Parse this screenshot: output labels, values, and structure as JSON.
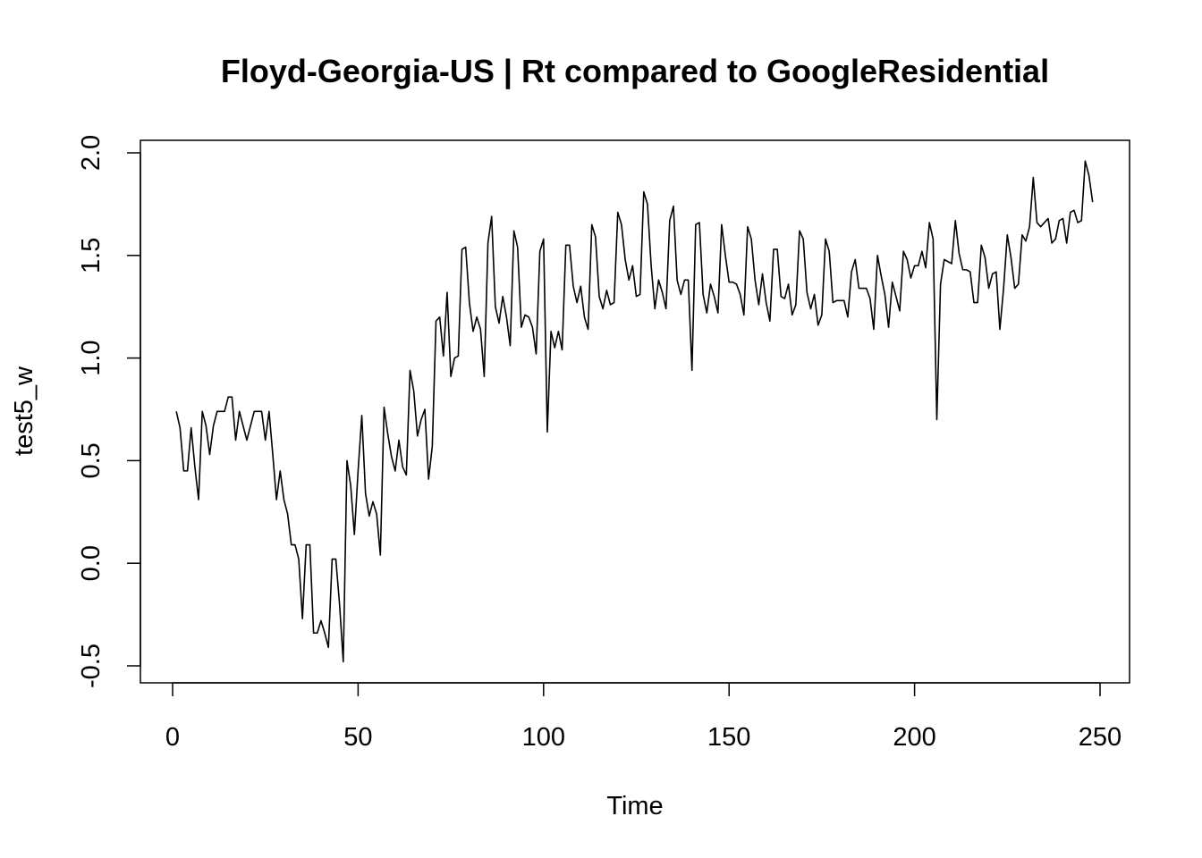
{
  "chart_data": {
    "type": "line",
    "title": "Floyd-Georgia-US | Rt compared to GoogleResidential",
    "xlabel": "Time",
    "ylabel": "test5_w",
    "xlim": [
      1,
      248
    ],
    "ylim": [
      -0.5,
      2.0
    ],
    "xticks": [
      0,
      50,
      100,
      150,
      200,
      250
    ],
    "yticks": [
      -0.5,
      0.0,
      0.5,
      1.0,
      1.5,
      2.0
    ],
    "xtick_labels": [
      "0",
      "50",
      "100",
      "150",
      "200",
      "250"
    ],
    "ytick_labels": [
      "-0.5",
      "0.0",
      "0.5",
      "1.0",
      "1.5",
      "2.0"
    ],
    "grid": false,
    "legend": "none",
    "series": [
      {
        "x_start": 1,
        "x_step": 1,
        "values": [
          0.74,
          0.66,
          0.45,
          0.45,
          0.66,
          0.47,
          0.31,
          0.74,
          0.67,
          0.53,
          0.67,
          0.74,
          0.74,
          0.74,
          0.81,
          0.81,
          0.6,
          0.74,
          0.67,
          0.6,
          0.67,
          0.74,
          0.74,
          0.74,
          0.6,
          0.74,
          0.53,
          0.31,
          0.45,
          0.31,
          0.24,
          0.09,
          0.09,
          0.02,
          -0.27,
          0.09,
          0.09,
          -0.34,
          -0.34,
          -0.28,
          -0.34,
          -0.41,
          0.02,
          0.02,
          -0.2,
          -0.48,
          0.5,
          0.38,
          0.14,
          0.45,
          0.72,
          0.34,
          0.23,
          0.3,
          0.24,
          0.04,
          0.76,
          0.63,
          0.52,
          0.45,
          0.6,
          0.47,
          0.43,
          0.94,
          0.84,
          0.62,
          0.7,
          0.75,
          0.41,
          0.57,
          1.18,
          1.2,
          1.01,
          1.32,
          0.91,
          1.0,
          1.01,
          1.53,
          1.54,
          1.27,
          1.13,
          1.2,
          1.14,
          0.91,
          1.56,
          1.69,
          1.25,
          1.17,
          1.3,
          1.2,
          1.06,
          1.62,
          1.54,
          1.15,
          1.21,
          1.2,
          1.15,
          1.02,
          1.52,
          1.58,
          0.64,
          1.13,
          1.05,
          1.13,
          1.04,
          1.55,
          1.55,
          1.35,
          1.27,
          1.35,
          1.2,
          1.14,
          1.65,
          1.59,
          1.3,
          1.24,
          1.33,
          1.26,
          1.27,
          1.71,
          1.65,
          1.48,
          1.38,
          1.45,
          1.3,
          1.31,
          1.81,
          1.75,
          1.45,
          1.24,
          1.38,
          1.32,
          1.24,
          1.67,
          1.74,
          1.38,
          1.31,
          1.38,
          1.38,
          0.94,
          1.65,
          1.66,
          1.31,
          1.22,
          1.36,
          1.3,
          1.22,
          1.65,
          1.5,
          1.37,
          1.37,
          1.36,
          1.31,
          1.21,
          1.64,
          1.58,
          1.38,
          1.26,
          1.41,
          1.27,
          1.18,
          1.53,
          1.53,
          1.3,
          1.29,
          1.36,
          1.21,
          1.26,
          1.62,
          1.58,
          1.32,
          1.24,
          1.31,
          1.16,
          1.21,
          1.58,
          1.52,
          1.27,
          1.28,
          1.28,
          1.28,
          1.2,
          1.42,
          1.48,
          1.34,
          1.34,
          1.34,
          1.29,
          1.14,
          1.5,
          1.4,
          1.31,
          1.15,
          1.37,
          1.3,
          1.23,
          1.52,
          1.48,
          1.39,
          1.45,
          1.45,
          1.52,
          1.44,
          1.66,
          1.58,
          0.7,
          1.36,
          1.48,
          1.47,
          1.46,
          1.67,
          1.51,
          1.43,
          1.43,
          1.42,
          1.27,
          1.27,
          1.55,
          1.49,
          1.34,
          1.41,
          1.42,
          1.14,
          1.34,
          1.6,
          1.49,
          1.34,
          1.36,
          1.6,
          1.57,
          1.64,
          1.88,
          1.66,
          1.64,
          1.66,
          1.68,
          1.56,
          1.58,
          1.67,
          1.68,
          1.56,
          1.71,
          1.72,
          1.66,
          1.67,
          1.96,
          1.89,
          1.76
        ]
      }
    ]
  }
}
